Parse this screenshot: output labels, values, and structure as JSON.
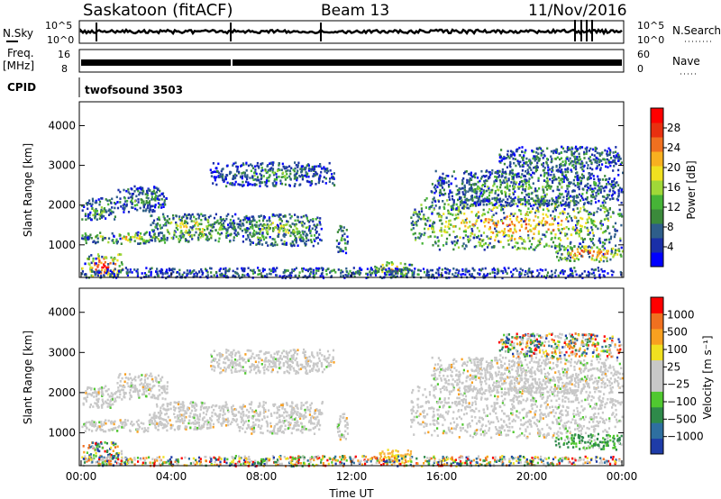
{
  "header": {
    "station": "Saskatoon (fitACF)",
    "beam": "Beam 13",
    "date": "11/Nov/2016"
  },
  "top_panels": {
    "nsky_label": "N.Sky",
    "nsky_ticks": [
      "10^5",
      "10^0"
    ],
    "nsearch_label": "N.Search",
    "nsearch_ticks": [
      "10^5",
      "10^0"
    ],
    "freq_label_1": "Freq.",
    "freq_label_2": "[MHz]",
    "freq_ticks": [
      "16",
      "8"
    ],
    "nave_label": "Nave",
    "nave_ticks": [
      "60",
      "0"
    ],
    "cpid_label": "CPID",
    "cpid_value": "twofsound 3503"
  },
  "chart_data": [
    {
      "type": "heatmap",
      "name": "power-panel",
      "xlabel": "",
      "ylabel": "Slant Range [km]",
      "x_ticks": [
        "00:00",
        "04:00",
        "08:00",
        "12:00",
        "16:00",
        "20:00",
        "00:00"
      ],
      "xlim_hours": [
        0,
        24
      ],
      "y_ticks": [
        1000,
        2000,
        3000,
        4000
      ],
      "ylim": [
        180,
        4600
      ],
      "colorbar": {
        "label": "Power [dB]",
        "ticks": [
          "28",
          "24",
          "20",
          "16",
          "12",
          "8",
          "4"
        ],
        "colors": [
          "#0000ff",
          "#1a2fa8",
          "#2e5e8a",
          "#3b8a3b",
          "#46b437",
          "#a0d838",
          "#f0e020",
          "#f8b020",
          "#f07020",
          "#e83010",
          "#ff0000"
        ]
      },
      "regions": [
        {
          "t0": 0.0,
          "t1": 1.8,
          "r0": 200,
          "r1": 800,
          "level": 0.85
        },
        {
          "t0": 0.0,
          "t1": 3.8,
          "r0": 1050,
          "r1": 1350,
          "level": 0.55
        },
        {
          "t0": 0.0,
          "t1": 1.5,
          "r0": 1650,
          "r1": 2200,
          "level": 0.4
        },
        {
          "t0": 1.5,
          "t1": 3.8,
          "r0": 1850,
          "r1": 2500,
          "level": 0.3
        },
        {
          "t0": 3.0,
          "t1": 6.8,
          "r0": 1100,
          "r1": 1800,
          "level": 0.5
        },
        {
          "t0": 5.7,
          "t1": 11.2,
          "r0": 2500,
          "r1": 3100,
          "level": 0.3
        },
        {
          "t0": 6.7,
          "t1": 10.7,
          "r0": 1000,
          "r1": 1800,
          "level": 0.45
        },
        {
          "t0": 11.3,
          "t1": 11.8,
          "r0": 800,
          "r1": 1500,
          "level": 0.4
        },
        {
          "t0": 13.0,
          "t1": 14.7,
          "r0": 250,
          "r1": 600,
          "level": 0.7
        },
        {
          "t0": 14.6,
          "t1": 24.0,
          "r0": 900,
          "r1": 2200,
          "level": 0.65
        },
        {
          "t0": 15.5,
          "t1": 24.0,
          "r0": 2000,
          "r1": 2900,
          "level": 0.35
        },
        {
          "t0": 18.5,
          "t1": 24.0,
          "r0": 2900,
          "r1": 3500,
          "level": 0.3
        },
        {
          "t0": 21.0,
          "t1": 24.0,
          "r0": 600,
          "r1": 1000,
          "level": 0.8
        },
        {
          "t0": 0.0,
          "t1": 24.0,
          "r0": 190,
          "r1": 450,
          "level": 0.25
        }
      ]
    },
    {
      "type": "heatmap",
      "name": "velocity-panel",
      "xlabel": "Time UT",
      "ylabel": "Slant Range [km]",
      "x_ticks": [
        "00:00",
        "04:00",
        "08:00",
        "12:00",
        "16:00",
        "20:00",
        "00:00"
      ],
      "xlim_hours": [
        0,
        24
      ],
      "y_ticks": [
        1000,
        2000,
        3000,
        4000
      ],
      "ylim": [
        180,
        4600
      ],
      "colorbar": {
        "label": "Velocity [m s⁻¹]",
        "ticks": [
          "1000",
          "500",
          "100",
          "25",
          "−25",
          "−100",
          "−500",
          "−1000"
        ],
        "colors": [
          "#1e3ca8",
          "#2e6fa0",
          "#2e8a4a",
          "#50c830",
          "#c8c8c8",
          "#c8c8c8",
          "#f0e020",
          "#f8a020",
          "#f07020",
          "#ff0000"
        ]
      },
      "regions": [
        {
          "t0": 0.0,
          "t1": 1.8,
          "r0": 200,
          "r1": 800,
          "kind": "mixed"
        },
        {
          "t0": 0.0,
          "t1": 3.8,
          "r0": 1050,
          "r1": 1350,
          "kind": "grey"
        },
        {
          "t0": 0.0,
          "t1": 1.5,
          "r0": 1650,
          "r1": 2200,
          "kind": "grey"
        },
        {
          "t0": 1.5,
          "t1": 3.8,
          "r0": 1850,
          "r1": 2500,
          "kind": "grey"
        },
        {
          "t0": 3.0,
          "t1": 6.8,
          "r0": 1100,
          "r1": 1800,
          "kind": "grey"
        },
        {
          "t0": 5.7,
          "t1": 11.2,
          "r0": 2500,
          "r1": 3100,
          "kind": "grey"
        },
        {
          "t0": 6.7,
          "t1": 10.7,
          "r0": 1000,
          "r1": 1800,
          "kind": "grey"
        },
        {
          "t0": 11.3,
          "t1": 11.8,
          "r0": 800,
          "r1": 1500,
          "kind": "grey"
        },
        {
          "t0": 13.0,
          "t1": 14.7,
          "r0": 250,
          "r1": 600,
          "kind": "orange"
        },
        {
          "t0": 14.6,
          "t1": 24.0,
          "r0": 900,
          "r1": 2200,
          "kind": "grey"
        },
        {
          "t0": 15.5,
          "t1": 24.0,
          "r0": 2000,
          "r1": 2900,
          "kind": "grey"
        },
        {
          "t0": 18.5,
          "t1": 24.0,
          "r0": 2900,
          "r1": 3500,
          "kind": "mixed"
        },
        {
          "t0": 21.0,
          "t1": 24.0,
          "r0": 600,
          "r1": 1000,
          "kind": "green"
        },
        {
          "t0": 0.0,
          "t1": 24.0,
          "r0": 190,
          "r1": 450,
          "kind": "mixed"
        }
      ]
    }
  ]
}
